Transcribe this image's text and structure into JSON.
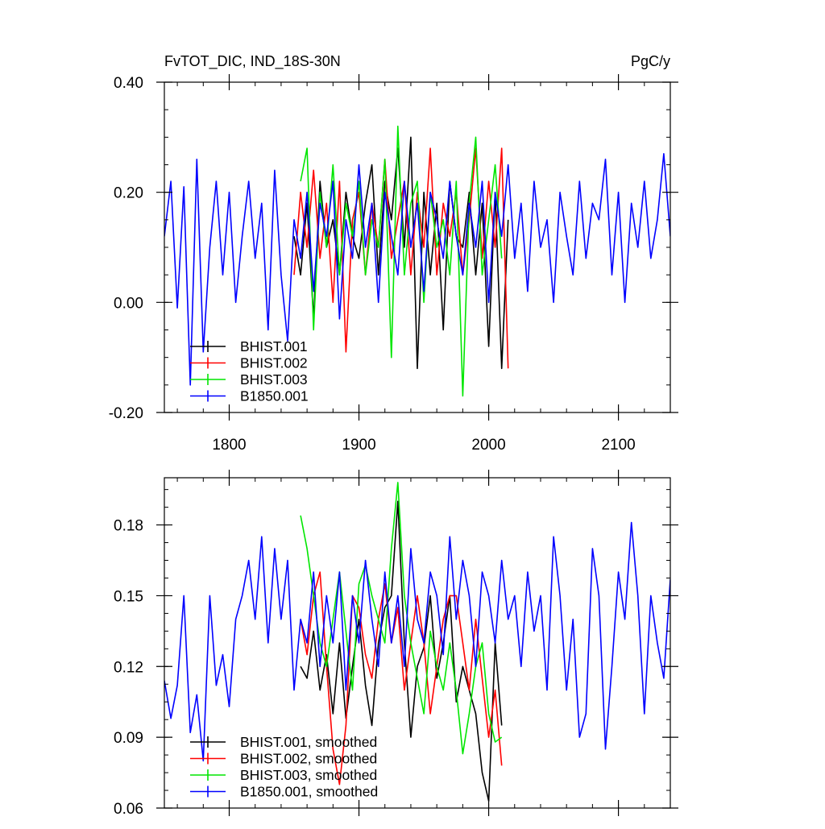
{
  "chart_data": [
    {
      "type": "line",
      "title": "FvTOT_DIC, IND_18S-30N",
      "units": "PgC/y",
      "xlim": [
        1750,
        2140
      ],
      "ylim": [
        -0.2,
        0.4
      ],
      "xticks": [
        1800,
        1900,
        2000,
        2100
      ],
      "yticks": [
        -0.2,
        0.0,
        0.2,
        0.4
      ],
      "ytick_labels": [
        "-0.20",
        "0.00",
        "0.20",
        "0.40"
      ],
      "legend_position": "bottom-left",
      "series": [
        {
          "name": "BHIST.001",
          "color": "#000000",
          "x": [
            1850,
            1855,
            1860,
            1865,
            1870,
            1875,
            1880,
            1885,
            1890,
            1895,
            1900,
            1905,
            1910,
            1915,
            1920,
            1925,
            1930,
            1935,
            1940,
            1945,
            1950,
            1955,
            1960,
            1965,
            1970,
            1975,
            1980,
            1985,
            1990,
            1995,
            2000,
            2005,
            2010,
            2015
          ],
          "y": [
            0.12,
            0.05,
            0.18,
            -0.03,
            0.22,
            0.1,
            0.15,
            0.05,
            0.2,
            0.12,
            0.08,
            0.18,
            0.25,
            0.05,
            0.22,
            0.15,
            0.28,
            0.1,
            0.3,
            -0.12,
            0.2,
            0.05,
            0.18,
            -0.05,
            0.22,
            0.12,
            0.1,
            0.2,
            0.05,
            0.18,
            -0.08,
            0.2,
            -0.12,
            0.15
          ]
        },
        {
          "name": "BHIST.002",
          "color": "#ff0000",
          "x": [
            1850,
            1855,
            1860,
            1865,
            1870,
            1875,
            1880,
            1885,
            1890,
            1895,
            1900,
            1905,
            1910,
            1915,
            1920,
            1925,
            1930,
            1935,
            1940,
            1945,
            1950,
            1955,
            1960,
            1965,
            1970,
            1975,
            1980,
            1985,
            1990,
            1995,
            2000,
            2005,
            2010,
            2015
          ],
          "y": [
            0.05,
            0.2,
            0.1,
            0.24,
            0.08,
            0.18,
            0.0,
            0.22,
            -0.09,
            0.15,
            0.2,
            0.05,
            0.18,
            0.1,
            0.26,
            0.08,
            0.15,
            0.22,
            0.05,
            0.2,
            0.1,
            0.28,
            0.05,
            0.18,
            0.12,
            0.2,
            0.05,
            0.15,
            0.28,
            0.08,
            0.22,
            0.1,
            0.28,
            -0.12
          ]
        },
        {
          "name": "BHIST.003",
          "color": "#00e600",
          "x": [
            1855,
            1860,
            1865,
            1870,
            1875,
            1880,
            1885,
            1890,
            1895,
            1900,
            1905,
            1910,
            1915,
            1920,
            1925,
            1930,
            1935,
            1940,
            1945,
            1950,
            1955,
            1960,
            1965,
            1970,
            1975,
            1980,
            1985,
            1990,
            1995,
            2000,
            2005,
            2010
          ],
          "y": [
            0.22,
            0.28,
            -0.05,
            0.2,
            0.1,
            0.25,
            0.05,
            0.18,
            0.12,
            0.22,
            0.05,
            0.15,
            0.1,
            0.26,
            -0.1,
            0.32,
            0.05,
            0.18,
            0.22,
            0.0,
            0.2,
            0.1,
            0.15,
            0.05,
            0.22,
            -0.17,
            0.18,
            0.3,
            0.05,
            0.15,
            0.25,
            0.08
          ]
        },
        {
          "name": "B1850.001",
          "color": "#0000ff",
          "x": [
            1750,
            1755,
            1760,
            1765,
            1770,
            1775,
            1780,
            1785,
            1790,
            1795,
            1800,
            1805,
            1810,
            1815,
            1820,
            1825,
            1830,
            1835,
            1840,
            1845,
            1850,
            1855,
            1860,
            1865,
            1870,
            1875,
            1880,
            1885,
            1890,
            1895,
            1900,
            1905,
            1910,
            1915,
            1920,
            1925,
            1930,
            1935,
            1940,
            1945,
            1950,
            1955,
            1960,
            1965,
            1970,
            1975,
            1980,
            1985,
            1990,
            1995,
            2000,
            2005,
            2010,
            2015,
            2020,
            2025,
            2030,
            2035,
            2040,
            2045,
            2050,
            2055,
            2060,
            2065,
            2070,
            2075,
            2080,
            2085,
            2090,
            2095,
            2100,
            2105,
            2110,
            2115,
            2120,
            2125,
            2130,
            2135,
            2140
          ],
          "y": [
            0.12,
            0.22,
            -0.01,
            0.21,
            -0.15,
            0.26,
            -0.09,
            0.1,
            0.22,
            0.05,
            0.2,
            0.0,
            0.12,
            0.22,
            0.08,
            0.18,
            -0.05,
            0.24,
            0.05,
            -0.07,
            0.15,
            0.08,
            0.2,
            0.02,
            0.18,
            0.12,
            0.22,
            -0.03,
            0.15,
            0.08,
            0.25,
            0.1,
            0.18,
            0.0,
            0.2,
            0.12,
            0.05,
            0.22,
            0.1,
            0.18,
            0.02,
            0.2,
            0.15,
            0.08,
            0.22,
            0.12,
            0.05,
            0.18,
            0.1,
            0.22,
            0.0,
            0.2,
            0.12,
            0.25,
            0.08,
            0.18,
            0.02,
            0.22,
            0.1,
            0.15,
            0.0,
            0.2,
            0.12,
            0.05,
            0.22,
            0.08,
            0.18,
            0.15,
            0.26,
            0.05,
            0.2,
            0.0,
            0.18,
            0.1,
            0.22,
            0.08,
            0.15,
            0.27,
            0.12
          ]
        }
      ]
    },
    {
      "type": "line",
      "title": "",
      "xlim": [
        1750,
        2140
      ],
      "ylim": [
        0.06,
        0.2
      ],
      "xticks": [
        1800,
        1900,
        2000,
        2100
      ],
      "yticks": [
        0.06,
        0.09,
        0.12,
        0.15,
        0.18
      ],
      "ytick_labels": [
        "0.06",
        "0.09",
        "0.12",
        "0.15",
        "0.18"
      ],
      "legend_position": "bottom-left",
      "series": [
        {
          "name": "BHIST.001, smoothed",
          "color": "#000000",
          "x": [
            1855,
            1860,
            1865,
            1870,
            1875,
            1880,
            1885,
            1890,
            1895,
            1900,
            1905,
            1910,
            1915,
            1920,
            1925,
            1930,
            1935,
            1940,
            1945,
            1950,
            1955,
            1960,
            1965,
            1970,
            1975,
            1980,
            1985,
            1990,
            1995,
            2000,
            2005,
            2010
          ],
          "y": [
            0.12,
            0.115,
            0.135,
            0.11,
            0.125,
            0.1,
            0.13,
            0.098,
            0.12,
            0.14,
            0.112,
            0.095,
            0.13,
            0.145,
            0.15,
            0.19,
            0.13,
            0.09,
            0.12,
            0.128,
            0.15,
            0.115,
            0.13,
            0.15,
            0.105,
            0.12,
            0.11,
            0.1,
            0.075,
            0.063,
            0.13,
            0.095
          ]
        },
        {
          "name": "BHIST.002, smoothed",
          "color": "#ff0000",
          "x": [
            1855,
            1860,
            1865,
            1870,
            1875,
            1880,
            1885,
            1890,
            1895,
            1900,
            1905,
            1910,
            1915,
            1920,
            1925,
            1930,
            1935,
            1940,
            1945,
            1950,
            1955,
            1960,
            1965,
            1970,
            1975,
            1980,
            1985,
            1990,
            1995,
            2000,
            2005,
            2010
          ],
          "y": [
            0.14,
            0.125,
            0.15,
            0.16,
            0.12,
            0.085,
            0.07,
            0.095,
            0.15,
            0.145,
            0.125,
            0.115,
            0.14,
            0.155,
            0.13,
            0.145,
            0.11,
            0.13,
            0.15,
            0.13,
            0.1,
            0.12,
            0.14,
            0.15,
            0.15,
            0.13,
            0.11,
            0.14,
            0.115,
            0.09,
            0.11,
            0.078
          ]
        },
        {
          "name": "BHIST.003, smoothed",
          "color": "#00e600",
          "x": [
            1855,
            1860,
            1865,
            1870,
            1875,
            1880,
            1885,
            1890,
            1895,
            1900,
            1905,
            1910,
            1915,
            1920,
            1925,
            1930,
            1935,
            1940,
            1945,
            1950,
            1955,
            1960,
            1965,
            1970,
            1975,
            1980,
            1985,
            1990,
            1995,
            2000,
            2005,
            2010
          ],
          "y": [
            0.184,
            0.17,
            0.15,
            0.13,
            0.12,
            0.14,
            0.16,
            0.135,
            0.11,
            0.155,
            0.163,
            0.15,
            0.14,
            0.13,
            0.17,
            0.198,
            0.15,
            0.13,
            0.115,
            0.1,
            0.135,
            0.12,
            0.11,
            0.13,
            0.11,
            0.083,
            0.1,
            0.12,
            0.13,
            0.1,
            0.088,
            0.09
          ]
        },
        {
          "name": "B1850.001, smoothed",
          "color": "#0000ff",
          "x": [
            1750,
            1755,
            1760,
            1765,
            1770,
            1775,
            1780,
            1785,
            1790,
            1795,
            1800,
            1805,
            1810,
            1815,
            1820,
            1825,
            1830,
            1835,
            1840,
            1845,
            1850,
            1855,
            1860,
            1865,
            1870,
            1875,
            1880,
            1885,
            1890,
            1895,
            1900,
            1905,
            1910,
            1915,
            1920,
            1925,
            1930,
            1935,
            1940,
            1945,
            1950,
            1955,
            1960,
            1965,
            1970,
            1975,
            1980,
            1985,
            1990,
            1995,
            2000,
            2005,
            2010,
            2015,
            2020,
            2025,
            2030,
            2035,
            2040,
            2045,
            2050,
            2055,
            2060,
            2065,
            2070,
            2075,
            2080,
            2085,
            2090,
            2095,
            2100,
            2105,
            2110,
            2115,
            2120,
            2125,
            2130,
            2135,
            2140
          ],
          "y": [
            0.114,
            0.098,
            0.112,
            0.15,
            0.092,
            0.108,
            0.08,
            0.15,
            0.112,
            0.125,
            0.103,
            0.14,
            0.15,
            0.165,
            0.14,
            0.175,
            0.13,
            0.17,
            0.14,
            0.165,
            0.11,
            0.14,
            0.13,
            0.16,
            0.12,
            0.15,
            0.13,
            0.16,
            0.11,
            0.15,
            0.13,
            0.165,
            0.14,
            0.12,
            0.16,
            0.13,
            0.15,
            0.12,
            0.17,
            0.14,
            0.13,
            0.16,
            0.15,
            0.125,
            0.175,
            0.14,
            0.165,
            0.15,
            0.12,
            0.16,
            0.15,
            0.13,
            0.165,
            0.14,
            0.15,
            0.12,
            0.16,
            0.135,
            0.15,
            0.11,
            0.175,
            0.15,
            0.11,
            0.14,
            0.09,
            0.1,
            0.17,
            0.15,
            0.085,
            0.12,
            0.16,
            0.14,
            0.181,
            0.15,
            0.1,
            0.15,
            0.13,
            0.115,
            0.157
          ]
        }
      ]
    }
  ]
}
